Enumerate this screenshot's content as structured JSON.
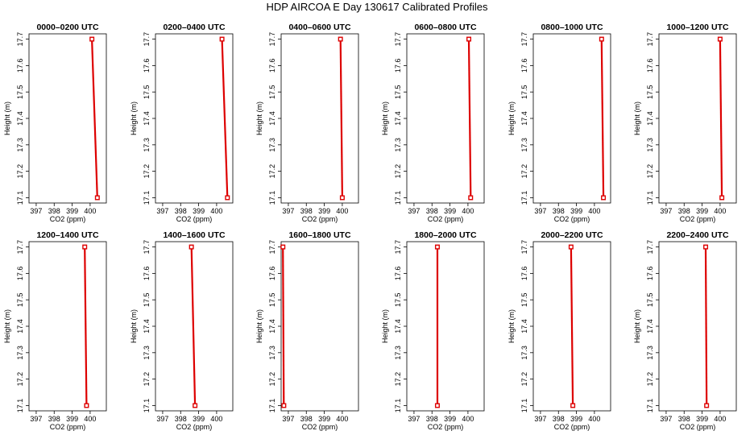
{
  "figure": {
    "title": "HDP AIRCOA E  Day 130617  Calibrated Profiles"
  },
  "colors": {
    "series": "#dd0000",
    "axes": "#000000",
    "background": "#ffffff"
  },
  "chart_data": [
    {
      "type": "line",
      "title": "0000–0200 UTC",
      "xlabel": "CO2 (ppm)",
      "ylabel": "Height (m)",
      "xlim": [
        396.6,
        400.9
      ],
      "ylim": [
        17.08,
        17.72
      ],
      "xticks": [
        397,
        398,
        399,
        400
      ],
      "yticks": [
        17.1,
        17.2,
        17.3,
        17.4,
        17.5,
        17.6,
        17.7
      ],
      "x": [
        400.1,
        400.4
      ],
      "y": [
        17.7,
        17.1
      ]
    },
    {
      "type": "line",
      "title": "0200–0400 UTC",
      "xlabel": "CO2 (ppm)",
      "ylabel": "Height (m)",
      "xlim": [
        396.6,
        400.9
      ],
      "ylim": [
        17.08,
        17.72
      ],
      "xticks": [
        397,
        398,
        399,
        400
      ],
      "yticks": [
        17.1,
        17.2,
        17.3,
        17.4,
        17.5,
        17.6,
        17.7
      ],
      "x": [
        400.3,
        400.6
      ],
      "y": [
        17.7,
        17.1
      ]
    },
    {
      "type": "line",
      "title": "0400–0600 UTC",
      "xlabel": "CO2 (ppm)",
      "ylabel": "Height (m)",
      "xlim": [
        396.6,
        400.9
      ],
      "ylim": [
        17.08,
        17.72
      ],
      "xticks": [
        397,
        398,
        399,
        400
      ],
      "yticks": [
        17.1,
        17.2,
        17.3,
        17.4,
        17.5,
        17.6,
        17.7
      ],
      "x": [
        399.9,
        400.0
      ],
      "y": [
        17.7,
        17.1
      ]
    },
    {
      "type": "line",
      "title": "0600–0800 UTC",
      "xlabel": "CO2 (ppm)",
      "ylabel": "Height (m)",
      "xlim": [
        396.6,
        400.9
      ],
      "ylim": [
        17.08,
        17.72
      ],
      "xticks": [
        397,
        398,
        399,
        400
      ],
      "yticks": [
        17.1,
        17.2,
        17.3,
        17.4,
        17.5,
        17.6,
        17.7
      ],
      "x": [
        400.05,
        400.15
      ],
      "y": [
        17.7,
        17.1
      ]
    },
    {
      "type": "line",
      "title": "0800–1000 UTC",
      "xlabel": "CO2 (ppm)",
      "ylabel": "Height (m)",
      "xlim": [
        396.6,
        400.9
      ],
      "ylim": [
        17.08,
        17.72
      ],
      "xticks": [
        397,
        398,
        399,
        400
      ],
      "yticks": [
        17.1,
        17.2,
        17.3,
        17.4,
        17.5,
        17.6,
        17.7
      ],
      "x": [
        400.4,
        400.5
      ],
      "y": [
        17.7,
        17.1
      ]
    },
    {
      "type": "line",
      "title": "1000–1200 UTC",
      "xlabel": "CO2 (ppm)",
      "ylabel": "Height (m)",
      "xlim": [
        396.6,
        400.9
      ],
      "ylim": [
        17.08,
        17.72
      ],
      "xticks": [
        397,
        398,
        399,
        400
      ],
      "yticks": [
        17.1,
        17.2,
        17.3,
        17.4,
        17.5,
        17.6,
        17.7
      ],
      "x": [
        400.0,
        400.1
      ],
      "y": [
        17.7,
        17.1
      ]
    },
    {
      "type": "line",
      "title": "1200–1400 UTC",
      "xlabel": "CO2 (ppm)",
      "ylabel": "Height (m)",
      "xlim": [
        396.6,
        400.9
      ],
      "ylim": [
        17.08,
        17.72
      ],
      "xticks": [
        397,
        398,
        399,
        400
      ],
      "yticks": [
        17.1,
        17.2,
        17.3,
        17.4,
        17.5,
        17.6,
        17.7
      ],
      "x": [
        399.7,
        399.8
      ],
      "y": [
        17.7,
        17.1
      ]
    },
    {
      "type": "line",
      "title": "1400–1600 UTC",
      "xlabel": "CO2 (ppm)",
      "ylabel": "Height (m)",
      "xlim": [
        396.6,
        400.9
      ],
      "ylim": [
        17.08,
        17.72
      ],
      "xticks": [
        397,
        398,
        399,
        400
      ],
      "yticks": [
        17.1,
        17.2,
        17.3,
        17.4,
        17.5,
        17.6,
        17.7
      ],
      "x": [
        398.6,
        398.8
      ],
      "y": [
        17.7,
        17.1
      ]
    },
    {
      "type": "line",
      "title": "1600–1800 UTC",
      "xlabel": "CO2 (ppm)",
      "ylabel": "Height (m)",
      "xlim": [
        396.6,
        400.9
      ],
      "ylim": [
        17.08,
        17.72
      ],
      "xticks": [
        397,
        398,
        399,
        400
      ],
      "yticks": [
        17.1,
        17.2,
        17.3,
        17.4,
        17.5,
        17.6,
        17.7
      ],
      "x": [
        396.7,
        396.75
      ],
      "y": [
        17.7,
        17.1
      ]
    },
    {
      "type": "line",
      "title": "1800–2000 UTC",
      "xlabel": "CO2 (ppm)",
      "ylabel": "Height (m)",
      "xlim": [
        396.6,
        400.9
      ],
      "ylim": [
        17.08,
        17.72
      ],
      "xticks": [
        397,
        398,
        399,
        400
      ],
      "yticks": [
        17.1,
        17.2,
        17.3,
        17.4,
        17.5,
        17.6,
        17.7
      ],
      "x": [
        398.3,
        398.3
      ],
      "y": [
        17.7,
        17.1
      ]
    },
    {
      "type": "line",
      "title": "2000–2200 UTC",
      "xlabel": "CO2 (ppm)",
      "ylabel": "Height (m)",
      "xlim": [
        396.6,
        400.9
      ],
      "ylim": [
        17.08,
        17.72
      ],
      "xticks": [
        397,
        398,
        399,
        400
      ],
      "yticks": [
        17.1,
        17.2,
        17.3,
        17.4,
        17.5,
        17.6,
        17.7
      ],
      "x": [
        398.7,
        398.8
      ],
      "y": [
        17.7,
        17.1
      ]
    },
    {
      "type": "line",
      "title": "2200–2400 UTC",
      "xlabel": "CO2 (ppm)",
      "ylabel": "Height (m)",
      "xlim": [
        396.6,
        400.9
      ],
      "ylim": [
        17.08,
        17.72
      ],
      "xticks": [
        397,
        398,
        399,
        400
      ],
      "yticks": [
        17.1,
        17.2,
        17.3,
        17.4,
        17.5,
        17.6,
        17.7
      ],
      "x": [
        399.2,
        399.25
      ],
      "y": [
        17.7,
        17.1
      ]
    }
  ]
}
